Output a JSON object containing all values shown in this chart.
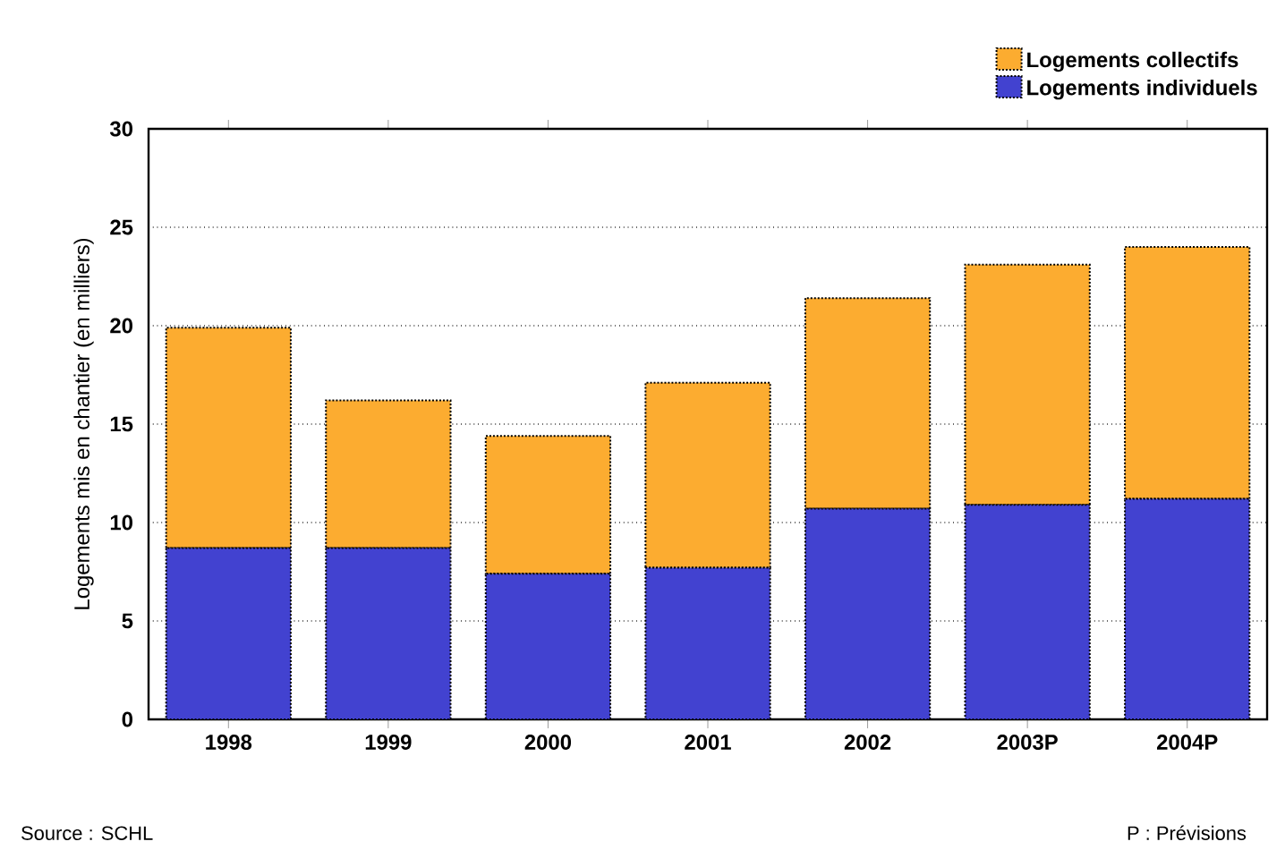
{
  "chart_data": {
    "type": "bar",
    "stacked": true,
    "ylabel": "Logements mis en chantier (en milliers)",
    "categories": [
      "1998",
      "1999",
      "2000",
      "2001",
      "2002",
      "2003P",
      "2004P"
    ],
    "series": [
      {
        "name": "Logements individuels",
        "color": "#4242d0",
        "values": [
          8.7,
          8.7,
          7.4,
          7.7,
          10.7,
          10.9,
          11.2
        ]
      },
      {
        "name": "Logements collectifs",
        "color": "#fcac30",
        "values": [
          11.2,
          7.5,
          7.0,
          9.4,
          10.7,
          12.2,
          12.8
        ]
      }
    ],
    "ylim": [
      0,
      30
    ],
    "yticks": [
      0,
      5,
      10,
      15,
      20,
      25,
      30
    ],
    "grid": "y",
    "legend": "top right",
    "annotations": [
      "Source : SCHL",
      "P : Prévisions"
    ]
  }
}
